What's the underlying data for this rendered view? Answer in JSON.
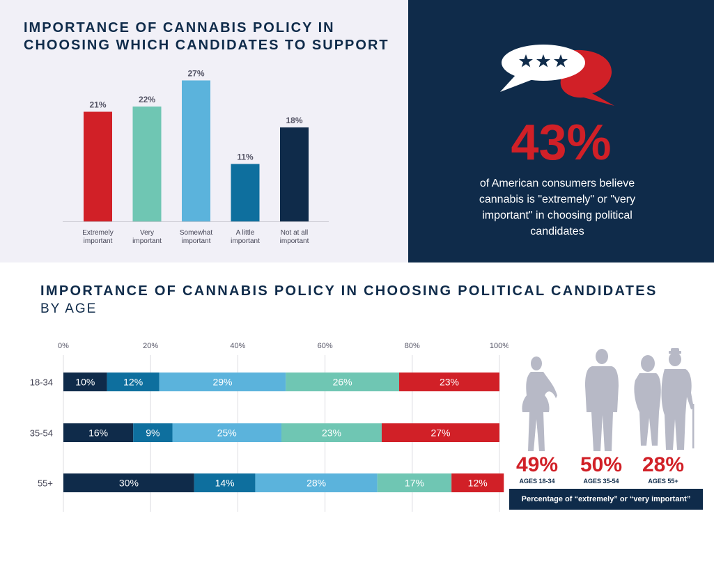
{
  "colors": {
    "navy": "#0f2b4a",
    "red": "#d12027",
    "teal": "#6fc6b3",
    "light_blue": "#5bb3dc",
    "mid_blue": "#0e6f9e",
    "silhouette": "#b7b9c6"
  },
  "top": {
    "title": "IMPORTANCE OF CANNABIS POLICY IN CHOOSING WHICH CANDIDATES TO SUPPORT"
  },
  "stat": {
    "value": "43%",
    "text": "of American consumers believe cannabis is \"extremely\" or \"very important\" in choosing political candidates",
    "icon": "speech-bubbles-stars-icon"
  },
  "bottom": {
    "title": "IMPORTANCE OF CANNABIS POLICY IN CHOOSING POLITICAL CANDIDATES",
    "subtitle": "BY AGE"
  },
  "age_summary": [
    {
      "pct": "49%",
      "label": "AGES 18-34",
      "icon": "woman-silhouette-icon"
    },
    {
      "pct": "50%",
      "label": "AGES 35-54",
      "icon": "man-silhouette-icon"
    },
    {
      "pct": "28%",
      "label": "AGES 55+",
      "icon": "elderly-couple-silhouette-icon"
    }
  ],
  "legend_note": "Percentage of “extremely” or “very important”",
  "chart_data": [
    {
      "type": "bar",
      "categories": [
        "Extremely important",
        "Very important",
        "Somewhat important",
        "A little important",
        "Not at all important"
      ],
      "values": [
        21,
        22,
        27,
        11,
        18
      ],
      "value_labels": [
        "21%",
        "22%",
        "27%",
        "11%",
        "18%"
      ],
      "bar_colors": [
        "#d12027",
        "#6fc6b3",
        "#5bb3dc",
        "#0e6f9e",
        "#0f2b4a"
      ],
      "title": "IMPORTANCE OF CANNABIS POLICY IN CHOOSING WHICH CANDIDATES TO SUPPORT",
      "ylim": [
        0,
        30
      ]
    },
    {
      "type": "bar",
      "orientation": "horizontal",
      "stacked": true,
      "title": "IMPORTANCE OF CANNABIS POLICY IN CHOOSING POLITICAL CANDIDATES",
      "subtitle": "BY AGE",
      "categories": [
        "18-34",
        "35-54",
        "55+"
      ],
      "series": [
        {
          "color": "#0f2b4a",
          "values": [
            10,
            16,
            30
          ]
        },
        {
          "color": "#0e6f9e",
          "values": [
            12,
            9,
            14
          ]
        },
        {
          "color": "#5bb3dc",
          "values": [
            29,
            25,
            28
          ]
        },
        {
          "color": "#6fc6b3",
          "values": [
            26,
            23,
            17
          ]
        },
        {
          "color": "#d12027",
          "values": [
            23,
            27,
            12
          ]
        }
      ],
      "xlim": [
        0,
        100
      ],
      "x_ticks": [
        "0%",
        "20%",
        "40%",
        "60%",
        "80%",
        "100%"
      ],
      "grid": true
    }
  ]
}
